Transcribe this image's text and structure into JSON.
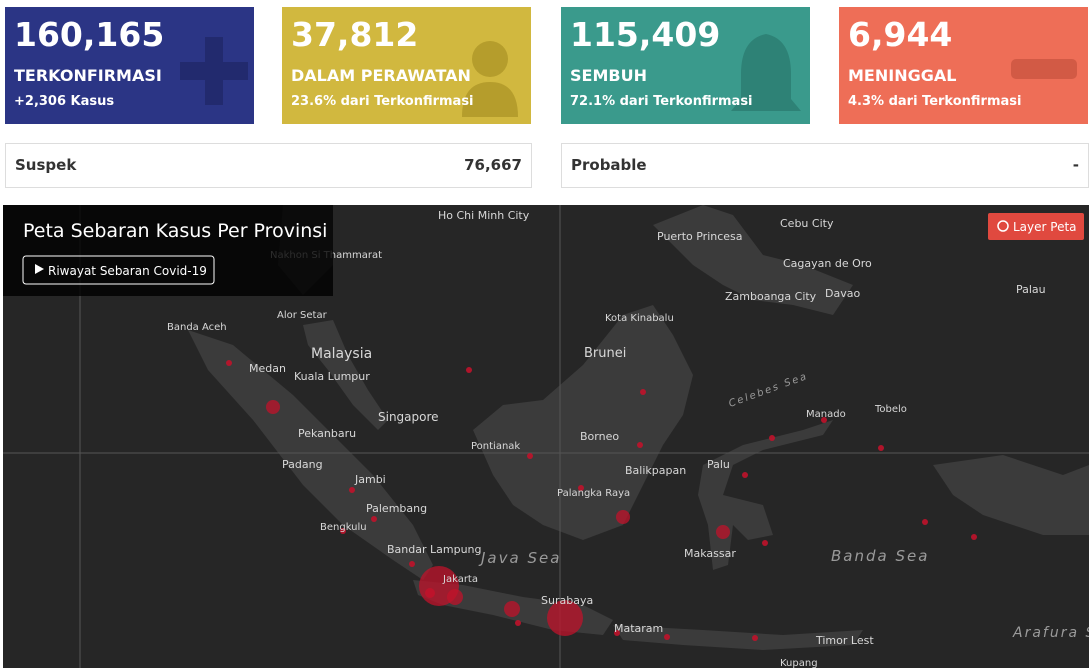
{
  "cards": [
    {
      "value": "160,165",
      "label": "TERKONFIRMASI",
      "sub": "+2,306 Kasus"
    },
    {
      "value": "37,812",
      "label": "DALAM PERAWATAN",
      "sub": "23.6% dari Terkonfirmasi"
    },
    {
      "value": "115,409",
      "label": "SEMBUH",
      "sub": "72.1% dari Terkonfirmasi"
    },
    {
      "value": "6,944",
      "label": "MENINGGAL",
      "sub": "4.3% dari Terkonfirmasi"
    }
  ],
  "stats": [
    {
      "label": "Suspek",
      "value": "76,667"
    },
    {
      "label": "Probable",
      "value": "-"
    }
  ],
  "map": {
    "title": "Peta Sebaran Kasus Per Provinsi",
    "history_button": "Riwayat Sebaran Covid-19",
    "layer_button": "Layer Peta",
    "places": [
      "Ho Chi Minh City",
      "Cebu City",
      "Puerto Princesa",
      "Cagayan de Oro",
      "Nakhon Si Thammarat",
      "Zamboanga City",
      "Davao",
      "Palau",
      "Banda Aceh",
      "Alor Setar",
      "Kota Kinabalu",
      "Malaysia",
      "Brunei",
      "Medan",
      "Kuala Lumpur",
      "Celebes Sea",
      "Singapore",
      "Manado",
      "Tobelo",
      "Pekanbaru",
      "Borneo",
      "Pontianak",
      "Padang",
      "Balikpapan",
      "Palu",
      "Jambi",
      "Palangka Raya",
      "Palembang",
      "Bengkulu",
      "Bandar Lampung",
      "Makassar",
      "Java Sea",
      "Banda Sea",
      "Jakarta",
      "Surabaya",
      "Mataram",
      "Timor Lest",
      "Kupang",
      "Arafura Sea"
    ]
  }
}
